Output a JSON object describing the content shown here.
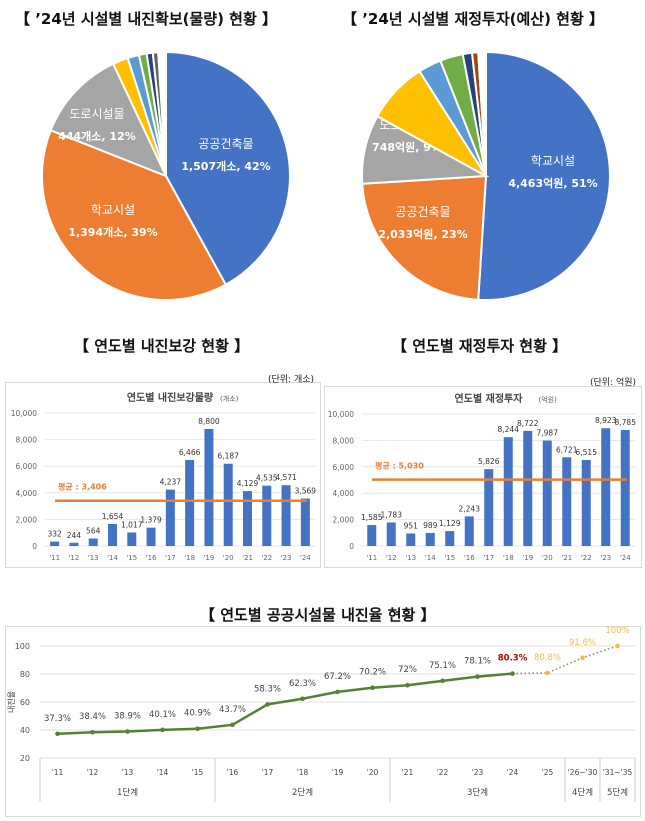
{
  "titles": {
    "pie1": "【 ’24년 시설별 내진확보(물량) 현황 】",
    "pie2": "【 ’24년 시설별 재정투자(예산) 현황 】",
    "bar1": "【 연도별 내진보강 현황 】",
    "bar2": "【 연도별 재정투자 현황 】",
    "line": "【 연도별 공공시설물 내진율 현황 】"
  },
  "chart_data": [
    {
      "type": "pie",
      "slices": [
        {
          "name": "공공건축물",
          "label": "1,507개소, 42%",
          "value": 42,
          "color": "#4472c4"
        },
        {
          "name": "학교시설",
          "label": "1,394개소, 39%",
          "value": 39,
          "color": "#ed7d31"
        },
        {
          "name": "도로시설물",
          "label": "444개소, 12%",
          "value": 12,
          "color": "#a5a5a5"
        },
        {
          "value": 2,
          "color": "#ffc000"
        },
        {
          "value": 1.5,
          "color": "#5b9bd5"
        },
        {
          "value": 1,
          "color": "#70ad47"
        },
        {
          "value": 0.8,
          "color": "#264478"
        },
        {
          "value": 0.7,
          "color": "#636363"
        },
        {
          "value": 1,
          "color": "#ffffff"
        }
      ]
    },
    {
      "type": "pie",
      "slices": [
        {
          "name": "학교시설",
          "label": "4,463억원, 51%",
          "value": 51,
          "color": "#4472c4"
        },
        {
          "name": "공공건축물",
          "label": "2,033억원, 23%",
          "value": 23,
          "color": "#ed7d31"
        },
        {
          "name": "도로시설물",
          "label": "748억원, 9%",
          "value": 9,
          "color": "#a5a5a5"
        },
        {
          "value": 8,
          "color": "#ffc000"
        },
        {
          "value": 3,
          "color": "#5b9bd5"
        },
        {
          "value": 3,
          "color": "#70ad47"
        },
        {
          "value": 1.2,
          "color": "#264478"
        },
        {
          "value": 0.8,
          "color": "#9e480e"
        },
        {
          "value": 1,
          "color": "#ffffff"
        }
      ]
    },
    {
      "type": "bar",
      "unit": "(단위: 개소)",
      "title": "연도별 내진보강물량",
      "title_unit": "(개소)",
      "categories": [
        "'11",
        "'12",
        "'13",
        "'14",
        "'15",
        "'16",
        "'17",
        "'18",
        "'19",
        "'20",
        "'21",
        "'22",
        "'23",
        "'24"
      ],
      "values": [
        332,
        244,
        564,
        1654,
        1017,
        1379,
        4237,
        6466,
        8800,
        6187,
        4129,
        4535,
        4571,
        3569
      ],
      "labels": [
        "332",
        "244",
        "564",
        "1,654",
        "1,017",
        "1,379",
        "4,237",
        "6,466",
        "8,800",
        "6,187",
        "4,129",
        "4,535",
        "4,571",
        "3,569"
      ],
      "ylim": [
        0,
        10000
      ],
      "yticks": [
        "0",
        "2,000",
        "4,000",
        "6,000",
        "8,000",
        "10,000"
      ],
      "average": {
        "value": 3406,
        "label": "평균 : 3,406"
      }
    },
    {
      "type": "bar",
      "unit": "(단위: 억원)",
      "title": "연도별 재정투자",
      "title_unit": "(억원)",
      "categories": [
        "'11",
        "'12",
        "'13",
        "'14",
        "'15",
        "'16",
        "'17",
        "'18",
        "'19",
        "'20",
        "'21",
        "'22",
        "'23",
        "'24"
      ],
      "values": [
        1585,
        1783,
        951,
        989,
        1129,
        2243,
        5826,
        8244,
        8722,
        7987,
        6721,
        6515,
        8923,
        8785
      ],
      "labels": [
        "1,585",
        "1,783",
        "951",
        "989",
        "1,129",
        "2,243",
        "5,826",
        "8,244",
        "8,722",
        "7,987",
        "6,721",
        "6,515",
        "8,923",
        "8,785"
      ],
      "ylim": [
        0,
        10000
      ],
      "yticks": [
        "0",
        "2,000",
        "4,000",
        "6,000",
        "8,000",
        "10,000"
      ],
      "average": {
        "value": 5030,
        "label": "평균 : 5,030"
      }
    },
    {
      "type": "line",
      "ylabel": "내진율",
      "ylim": [
        20,
        100
      ],
      "yticks": [
        "20",
        "40",
        "60",
        "80",
        "100"
      ],
      "categories": [
        "'11",
        "'12",
        "'13",
        "'14",
        "'15",
        "'16",
        "'17",
        "'18",
        "'19",
        "'20",
        "'21",
        "'22",
        "'23",
        "'24",
        "'25",
        "'26~'30",
        "'31~'35"
      ],
      "values": [
        37.3,
        38.4,
        38.9,
        40.1,
        40.9,
        43.7,
        58.3,
        62.3,
        67.2,
        70.2,
        72,
        75.1,
        78.1,
        80.3,
        80.8,
        91.6,
        100
      ],
      "labels": [
        "37.3%",
        "38.4%",
        "38.9%",
        "40.1%",
        "40.9%",
        "43.7%",
        "58.3%",
        "62.3%",
        "67.2%",
        "70.2%",
        "72%",
        "75.1%",
        "78.1%",
        "80.3%",
        "80.8%",
        "91.6%",
        "100%"
      ],
      "actual_until_index": 13,
      "groups": [
        {
          "label": "1단계",
          "span": 5
        },
        {
          "label": "2단계",
          "span": 5
        },
        {
          "label": "3단계",
          "span": 5
        },
        {
          "label": "4단계",
          "span": 1
        },
        {
          "label": "5단계",
          "span": 1
        }
      ],
      "colors": {
        "line": "#548235",
        "projection": "#f4b942",
        "highlight": "#c00000"
      }
    }
  ]
}
